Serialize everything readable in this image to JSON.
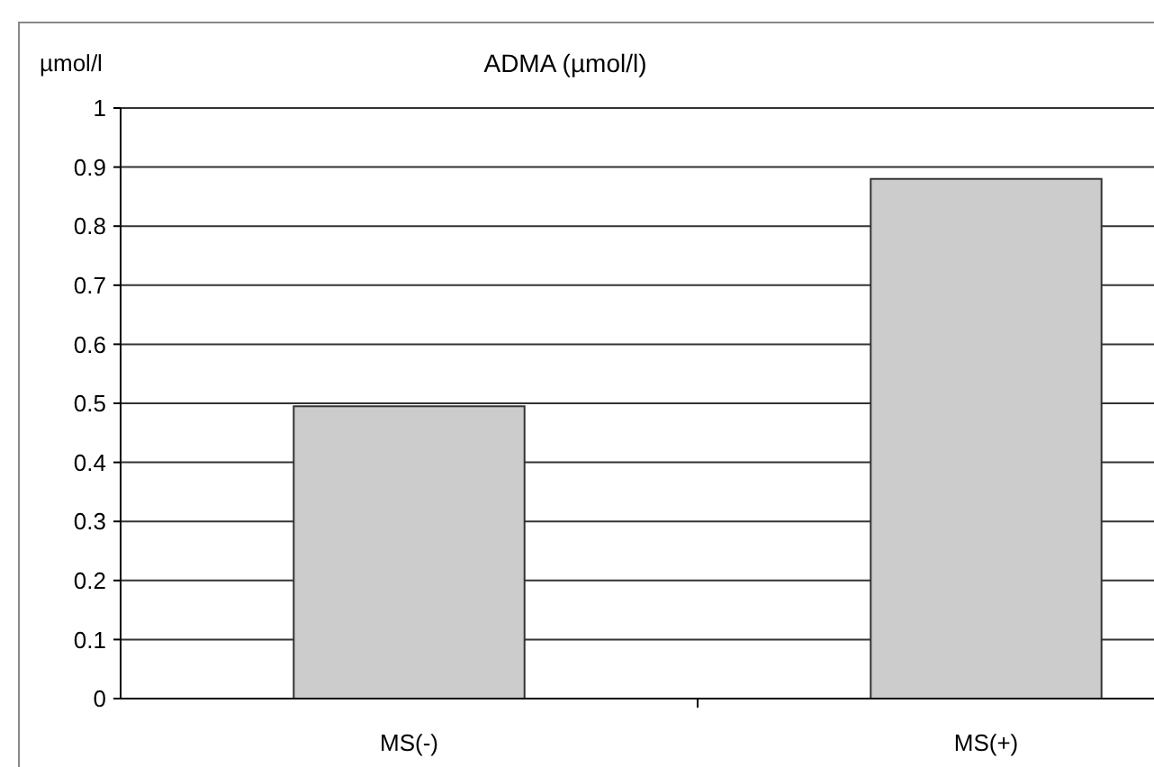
{
  "chart_data": {
    "type": "bar",
    "title": "ADMA (µmol/l)",
    "ylabel": "µmol/l",
    "categories": [
      "MS(-)",
      "MS(+)"
    ],
    "values": [
      0.495,
      0.88
    ],
    "color": "#cccccc",
    "ylim": [
      0,
      1
    ],
    "yticks": [
      0,
      0.1,
      0.2,
      0.3,
      0.4,
      0.5,
      0.6,
      0.7,
      0.8,
      0.9,
      1
    ],
    "grid": "y"
  }
}
